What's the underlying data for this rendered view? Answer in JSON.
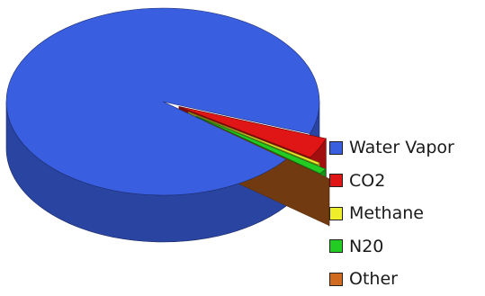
{
  "chart_data": {
    "type": "pie",
    "style": "3d-exploded-slices",
    "categories": [
      "Water Vapor",
      "CO2",
      "Methane",
      "N20",
      "Other"
    ],
    "values": [
      95.0,
      3.6,
      0.36,
      0.95,
      0.07
    ],
    "colors": [
      "#3a5ee0",
      "#e01515",
      "#eeee2a",
      "#22cc22",
      "#d06a1f"
    ],
    "legend": {
      "position": "right",
      "items": [
        {
          "label": "Water Vapor",
          "color": "#3a5ee0"
        },
        {
          "label": "CO2",
          "color": "#e01515"
        },
        {
          "label": "Methane",
          "color": "#eeee2a"
        },
        {
          "label": "N20",
          "color": "#22cc22"
        },
        {
          "label": "Other",
          "color": "#d06a1f"
        }
      ]
    }
  }
}
